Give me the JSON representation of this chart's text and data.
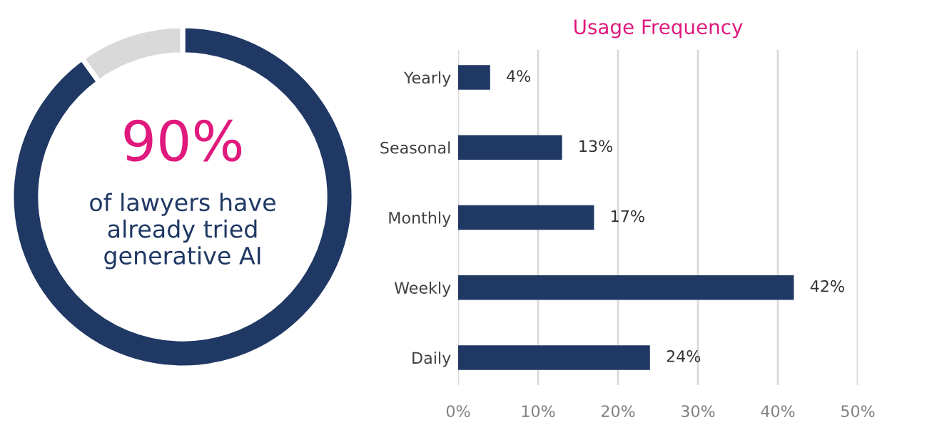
{
  "chart_data": [
    {
      "type": "donut",
      "categories": [
        null,
        null
      ],
      "values": [
        90,
        10
      ],
      "colors": [
        "#1f3864",
        "#d9d9d9"
      ],
      "value_labels": [
        "90%",
        null
      ],
      "annotations": [
        "of lawyers have\nalready tried\ngenerative AI"
      ]
    },
    {
      "type": "bar",
      "title": "Usage Frequency",
      "orientation": "horizontal",
      "categories": [
        "Yearly",
        "Seasonal",
        "Monthly",
        "Weekly",
        "Daily"
      ],
      "values": [
        4,
        13,
        17,
        42,
        24
      ],
      "color": "#1f3864",
      "xlim": [
        0,
        50
      ],
      "xticks": [
        {
          "value": 0,
          "label": "0%"
        },
        {
          "value": 10,
          "label": "10%"
        },
        {
          "value": 20,
          "label": "20%"
        },
        {
          "value": 30,
          "label": "30%"
        },
        {
          "value": 40,
          "label": "40%"
        },
        {
          "value": 50,
          "label": "50%"
        }
      ],
      "grid": "x",
      "value_labels": [
        "4%",
        "13%",
        "17%",
        "42%",
        "24%"
      ]
    }
  ]
}
